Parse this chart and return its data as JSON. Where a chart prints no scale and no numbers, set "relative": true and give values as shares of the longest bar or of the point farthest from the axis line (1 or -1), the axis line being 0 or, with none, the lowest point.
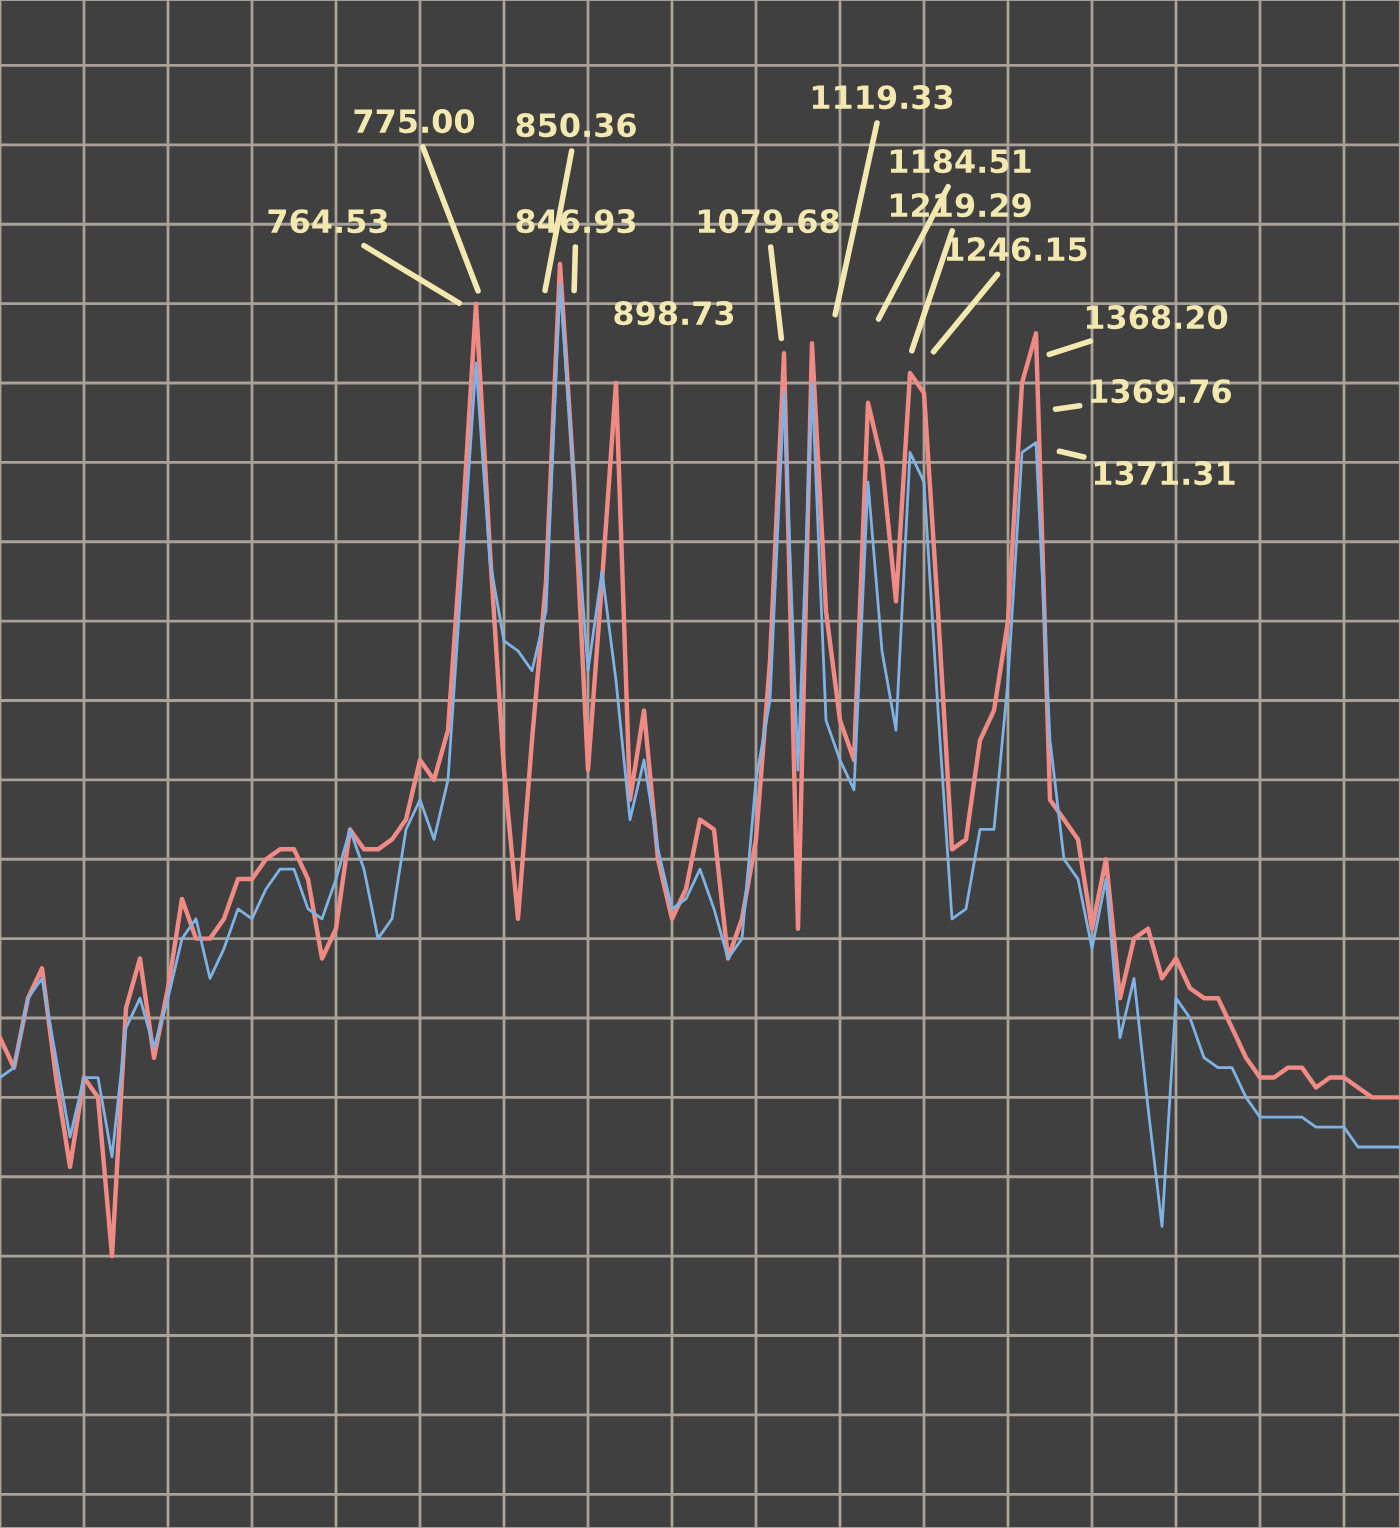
{
  "chart_data": {
    "type": "line",
    "relative": true,
    "grid": true,
    "tick_labels": false,
    "categories": [
      null,
      null,
      null,
      null,
      null,
      null,
      null,
      null,
      null,
      null,
      null,
      null,
      null,
      null,
      null,
      null,
      null,
      null,
      null,
      null,
      null,
      null,
      null,
      null,
      null,
      null,
      null,
      null,
      null,
      null,
      null,
      null,
      null,
      null,
      null,
      null,
      null,
      null,
      null,
      null,
      null,
      null,
      null,
      null,
      null,
      null,
      null,
      null,
      null,
      null,
      null,
      null,
      null,
      null,
      null,
      null,
      null,
      null,
      null,
      null,
      null,
      null,
      null,
      null,
      null,
      null,
      null,
      null,
      null,
      null,
      null,
      null,
      null,
      null,
      null,
      null,
      null,
      null,
      null,
      null,
      null,
      null,
      null,
      null,
      null,
      null,
      null,
      null,
      null,
      null,
      null,
      null,
      null,
      null,
      null,
      null,
      null,
      null,
      null,
      null,
      null
    ],
    "series": [
      {
        "color": "#7fb2e5",
        "values": [
          0.18,
          0.19,
          0.26,
          0.28,
          0.2,
          0.12,
          0.18,
          0.18,
          0.1,
          0.23,
          0.26,
          0.21,
          0.26,
          0.32,
          0.34,
          0.28,
          0.31,
          0.35,
          0.34,
          0.37,
          0.39,
          0.39,
          0.35,
          0.34,
          0.38,
          0.43,
          0.39,
          0.32,
          0.34,
          0.43,
          0.46,
          0.42,
          0.48,
          0.69,
          0.9,
          0.7,
          0.62,
          0.61,
          0.59,
          0.65,
          0.98,
          0.78,
          0.59,
          0.69,
          0.58,
          0.44,
          0.5,
          0.41,
          0.35,
          0.36,
          0.39,
          0.35,
          0.3,
          0.32,
          0.48,
          0.56,
          0.87,
          0.49,
          0.88,
          0.54,
          0.5,
          0.47,
          0.78,
          0.61,
          0.53,
          0.81,
          0.78,
          0.55,
          0.34,
          0.35,
          0.43,
          0.43,
          0.58,
          0.81,
          0.82,
          0.52,
          0.4,
          0.38,
          0.31,
          0.38,
          0.22,
          0.28,
          0.15,
          0.03,
          0.26,
          0.24,
          0.2,
          0.19,
          0.19,
          0.16,
          0.14,
          0.14,
          0.14,
          0.14,
          0.13,
          0.13,
          0.13,
          0.11,
          0.11,
          0.11,
          0.11
        ]
      },
      {
        "color": "#f08a84",
        "values": [
          0.22,
          0.19,
          0.26,
          0.29,
          0.18,
          0.09,
          0.18,
          0.16,
          0,
          0.25,
          0.3,
          0.2,
          0.27,
          0.36,
          0.32,
          0.32,
          0.34,
          0.38,
          0.38,
          0.4,
          0.41,
          0.41,
          0.38,
          0.3,
          0.33,
          0.43,
          0.41,
          0.41,
          0.42,
          0.44,
          0.5,
          0.48,
          0.53,
          0.73,
          0.96,
          0.71,
          0.49,
          0.34,
          0.52,
          0.68,
          1.0,
          0.78,
          0.49,
          0.68,
          0.88,
          0.46,
          0.55,
          0.4,
          0.34,
          0.37,
          0.44,
          0.43,
          0.3,
          0.34,
          0.42,
          0.6,
          0.91,
          0.33,
          0.92,
          0.65,
          0.54,
          0.5,
          0.86,
          0.8,
          0.66,
          0.89,
          0.87,
          0.65,
          0.41,
          0.42,
          0.52,
          0.55,
          0.64,
          0.88,
          0.93,
          0.46,
          0.44,
          0.42,
          0.33,
          0.4,
          0.26,
          0.32,
          0.33,
          0.28,
          0.3,
          0.27,
          0.26,
          0.26,
          0.23,
          0.2,
          0.18,
          0.18,
          0.19,
          0.19,
          0.17,
          0.18,
          0.18,
          0.17,
          0.16,
          0.16,
          0.16
        ]
      }
    ],
    "annotations": [
      "764.53",
      "775.00",
      "850.36",
      "846.93",
      "898.73",
      "1079.68",
      "1119.33",
      "1184.51",
      "1219.29",
      "1246.15",
      "1368.20",
      "1369.76",
      "1371.31"
    ]
  }
}
